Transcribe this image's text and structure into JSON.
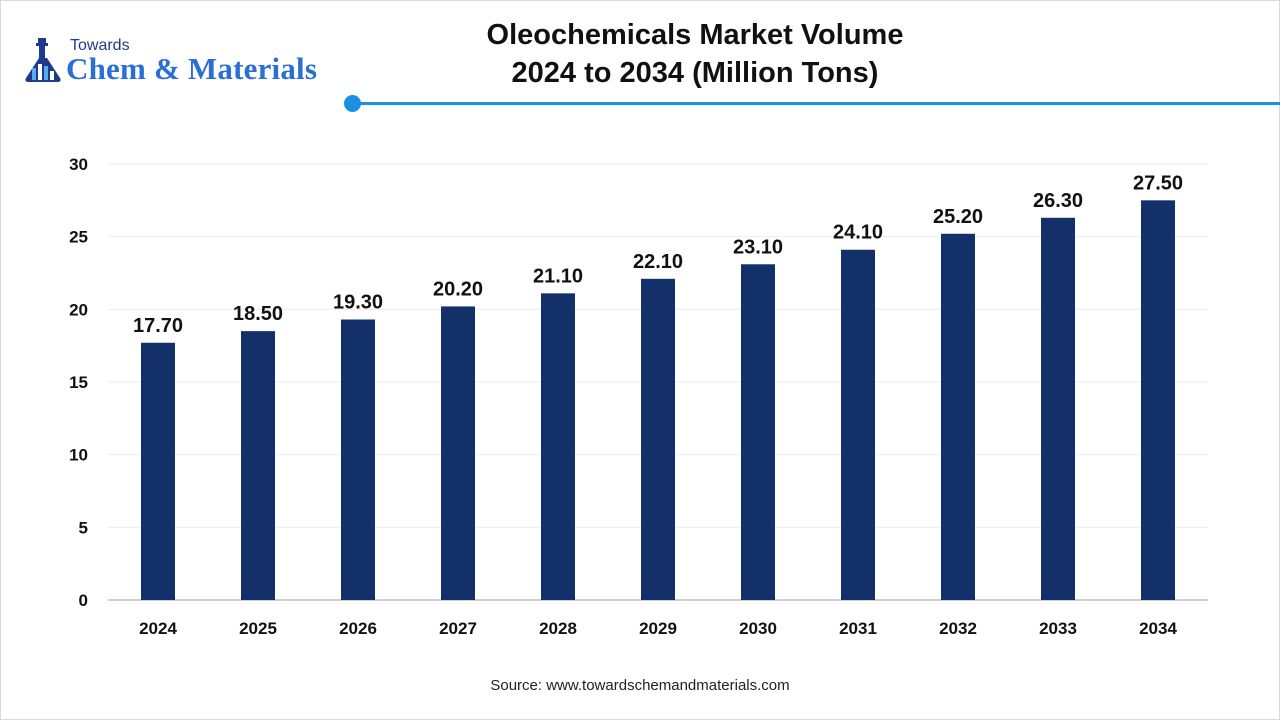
{
  "header": {
    "logo_top": "Towards",
    "logo_main": "Chem & Materials",
    "title_line1": "Oleochemicals Market Volume",
    "title_line2": "2024 to 2034 (Million Tons)"
  },
  "source": "Source: www.towardschemandmaterials.com",
  "colors": {
    "bar": "#13306b",
    "accent": "#1a8fe3",
    "logo_blue": "#2a6fd6"
  },
  "chart_data": {
    "type": "bar",
    "title": "Oleochemicals Market Volume 2024 to 2034 (Million Tons)",
    "categories": [
      "2024",
      "2025",
      "2026",
      "2027",
      "2028",
      "2029",
      "2030",
      "2031",
      "2032",
      "2033",
      "2034"
    ],
    "values": [
      17.7,
      18.5,
      19.3,
      20.2,
      21.1,
      22.1,
      23.1,
      24.1,
      25.2,
      26.3,
      27.5
    ],
    "value_labels": [
      "17.70",
      "18.50",
      "19.30",
      "20.20",
      "21.10",
      "22.10",
      "23.10",
      "24.10",
      "25.20",
      "26.30",
      "27.50"
    ],
    "yticks": [
      "0",
      "5",
      "10",
      "15",
      "20",
      "25",
      "30"
    ],
    "ylim": [
      0,
      30
    ],
    "grid": true,
    "legend": "none",
    "xlabel": "",
    "ylabel": ""
  }
}
